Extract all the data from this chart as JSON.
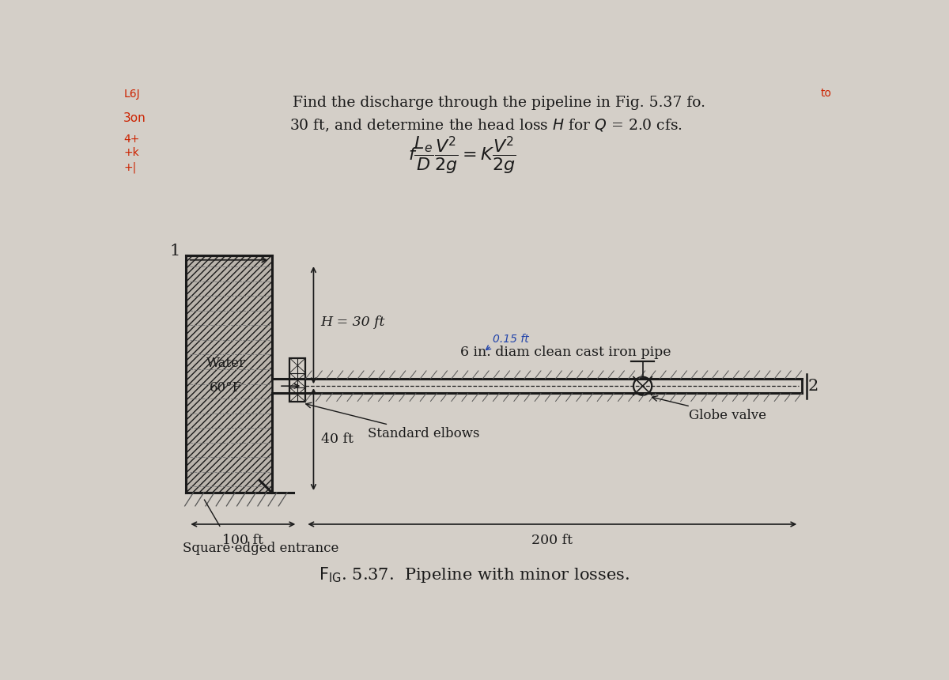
{
  "bg_color": "#d4cfc8",
  "title_line1": "Find the discharge through the pipeline in Fig. 5.37 fo.",
  "title_line2": "30 ft, and determine the head loss H for Q = 2.0 cfs.",
  "label_water": "Water",
  "label_temp": "60°F",
  "label_H": "H = 30 ft",
  "label_40ft": "40 ft",
  "label_100ft": "100 ft",
  "label_200ft": "200 ft",
  "label_pipe": "6 in. diam clean cast iron pipe",
  "label_globe": "Globe valve",
  "label_elbows": "Standard elbows",
  "label_entrance": "Square·edged entrance",
  "label_1": "1",
  "label_2": "2",
  "label_caption": "FᴐG. 5.37.  Pipeline with minor losses.",
  "line_color": "#1a1a1a",
  "hatch_color": "#555555",
  "red_color": "#cc2200",
  "blue_color": "#2244aa"
}
